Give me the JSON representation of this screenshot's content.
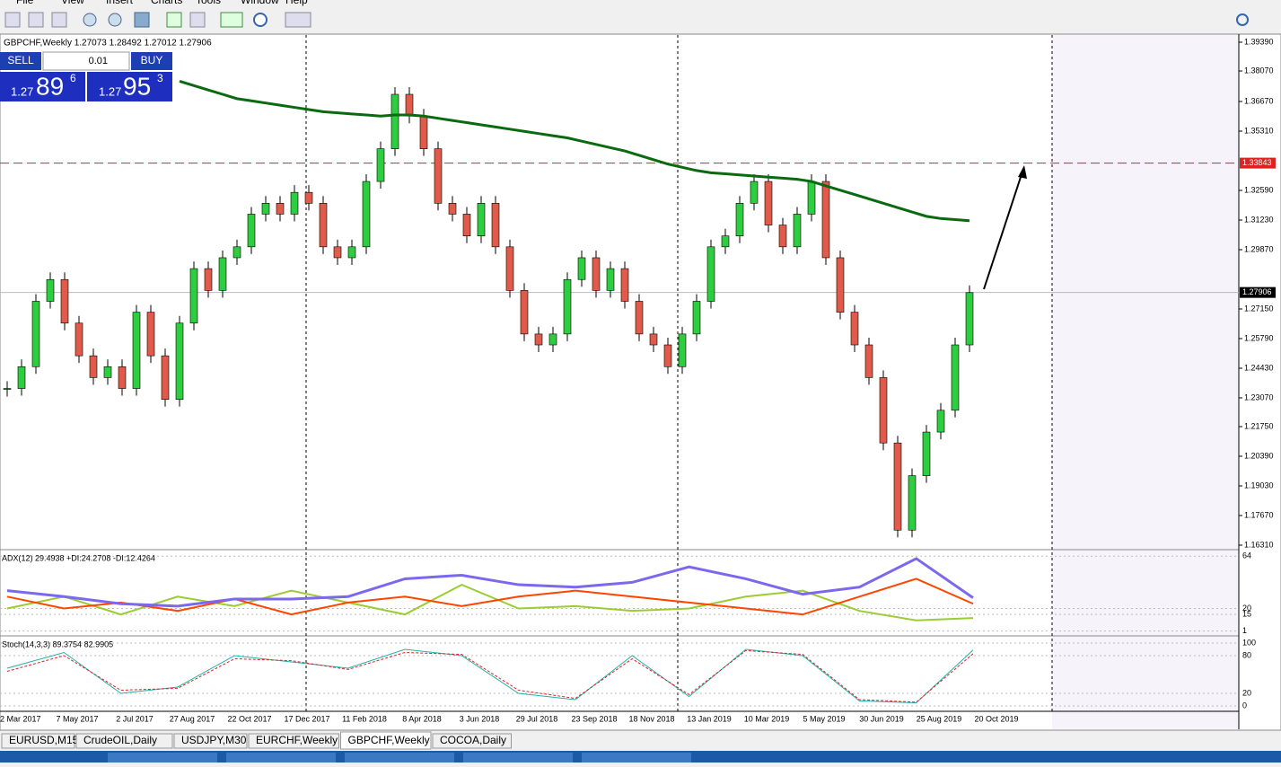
{
  "menu": [
    "File",
    "View",
    "Insert",
    "Charts",
    "Tools",
    "Window",
    "Help"
  ],
  "chart": {
    "header": "GBPCHF,Weekly  1.27073 1.28492 1.27012 1.27906",
    "trade": {
      "sell": "SELL",
      "buy": "BUY",
      "lots": "0.01",
      "bid_big": "1.27",
      "bid_pips": "89",
      "bid_frac": "6",
      "ask_big": "1.27",
      "ask_pips": "95",
      "ask_frac": "3"
    },
    "ylim": [
      1.16186,
      1.39679
    ],
    "yticks": [
      {
        "value": 1.3939,
        "label": "1.39390"
      },
      {
        "value": 1.3807,
        "label": "1.38070"
      },
      {
        "value": 1.3667,
        "label": "1.36670"
      },
      {
        "value": 1.3531,
        "label": "1.35310"
      },
      {
        "value": 1.3259,
        "label": "1.32590"
      },
      {
        "value": 1.3123,
        "label": "1.31230"
      },
      {
        "value": 1.2987,
        "label": "1.29870"
      },
      {
        "value": 1.2715,
        "label": "1.27150"
      },
      {
        "value": 1.2579,
        "label": "1.25790"
      },
      {
        "value": 1.2443,
        "label": "1.24430"
      },
      {
        "value": 1.2307,
        "label": "1.23070"
      },
      {
        "value": 1.2175,
        "label": "1.21750"
      },
      {
        "value": 1.2039,
        "label": "1.20390"
      },
      {
        "value": 1.1903,
        "label": "1.19030"
      },
      {
        "value": 1.1767,
        "label": "1.17670"
      },
      {
        "value": 1.1631,
        "label": "1.16310"
      }
    ],
    "level": {
      "value": 1.33843,
      "label": "1.33843"
    },
    "last": {
      "value": 1.27906,
      "label": "1.27906"
    },
    "dates": [
      "2 Mar 2017",
      "7 May 2017",
      "2 Jul 2017",
      "27 Aug 2017",
      "22 Oct 2017",
      "17 Dec 2017",
      "11 Feb 2018",
      "8 Apr 2018",
      "3 Jun 2018",
      "29 Jul 2018",
      "23 Sep 2018",
      "18 Nov 2018",
      "13 Jan 2019",
      "10 Mar 2019",
      "5 May 2019",
      "30 Jun 2019",
      "25 Aug 2019",
      "20 Oct 2019"
    ],
    "closes": [
      1.235,
      1.245,
      1.275,
      1.285,
      1.265,
      1.25,
      1.24,
      1.245,
      1.235,
      1.27,
      1.25,
      1.23,
      1.265,
      1.29,
      1.28,
      1.295,
      1.3,
      1.315,
      1.32,
      1.315,
      1.325,
      1.32,
      1.3,
      1.295,
      1.3,
      1.33,
      1.345,
      1.37,
      1.36,
      1.345,
      1.32,
      1.315,
      1.305,
      1.32,
      1.3,
      1.28,
      1.26,
      1.255,
      1.26,
      1.285,
      1.295,
      1.28,
      1.29,
      1.275,
      1.26,
      1.255,
      1.245,
      1.26,
      1.275,
      1.3,
      1.305,
      1.32,
      1.33,
      1.31,
      1.3,
      1.315,
      1.33,
      1.295,
      1.27,
      1.255,
      1.24,
      1.21,
      1.17,
      1.195,
      1.215,
      1.225,
      1.255,
      1.279
    ],
    "ma": [
      null,
      null,
      null,
      null,
      null,
      null,
      null,
      null,
      null,
      null,
      null,
      null,
      1.376,
      1.374,
      1.372,
      1.37,
      1.368,
      1.367,
      1.366,
      1.365,
      1.364,
      1.363,
      1.362,
      1.3615,
      1.361,
      1.3605,
      1.36,
      1.3605,
      1.3605,
      1.36,
      1.359,
      1.358,
      1.357,
      1.356,
      1.355,
      1.354,
      1.353,
      1.352,
      1.351,
      1.35,
      1.3485,
      1.347,
      1.3455,
      1.344,
      1.342,
      1.34,
      1.338,
      1.3365,
      1.335,
      1.334,
      1.3335,
      1.333,
      1.3325,
      1.332,
      1.3315,
      1.331,
      1.33,
      1.328,
      1.326,
      1.324,
      1.322,
      1.32,
      1.318,
      1.316,
      1.314,
      1.313,
      1.3125,
      1.312
    ]
  },
  "adx": {
    "label": "ADX(12) 29.4938 +DI:24.2708 -DI:12.4264",
    "ylim": [
      0,
      68
    ],
    "yticks": [
      64,
      20,
      15,
      1
    ],
    "adx": [
      35,
      30,
      24,
      22,
      28,
      28,
      30,
      45,
      48,
      40,
      38,
      42,
      55,
      45,
      32,
      38,
      62,
      29
    ],
    "plus_di": [
      30,
      20,
      25,
      18,
      28,
      15,
      25,
      30,
      22,
      30,
      35,
      30,
      25,
      20,
      15,
      30,
      45,
      24
    ],
    "minus_di": [
      20,
      30,
      15,
      30,
      22,
      35,
      25,
      15,
      40,
      20,
      22,
      18,
      20,
      30,
      35,
      18,
      10,
      12
    ]
  },
  "stoch": {
    "label": "Stoch(14,3,3) 89.3754 82.9905",
    "ylim": [
      0,
      100
    ],
    "yticks": [
      100,
      80,
      20,
      0
    ],
    "main": [
      60,
      85,
      20,
      30,
      80,
      70,
      60,
      90,
      80,
      20,
      10,
      80,
      15,
      90,
      80,
      8,
      5,
      89
    ],
    "signal": [
      55,
      80,
      25,
      28,
      75,
      72,
      58,
      85,
      82,
      25,
      12,
      75,
      18,
      88,
      82,
      10,
      6,
      83
    ]
  },
  "tabs": [
    "EURUSD,M15",
    "CrudeOIL,Daily",
    "USDJPY,M30",
    "EURCHF,Weekly",
    "GBPCHF,Weekly",
    "COCOA,Daily"
  ]
}
